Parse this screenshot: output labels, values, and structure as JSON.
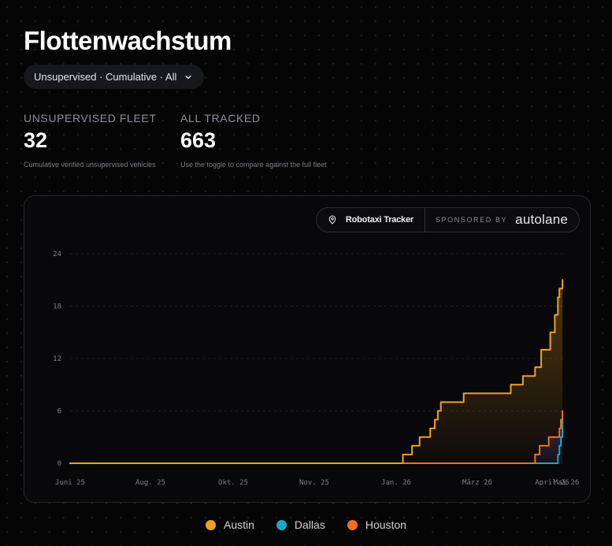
{
  "header": {
    "title": "Flottenwachstum",
    "filter_label": "Unsupervised · Cumulative · All"
  },
  "stats": [
    {
      "label": "UNSUPERVISED FLEET",
      "value": "32",
      "sub": "Cumulative verified unsupervised vehicles"
    },
    {
      "label": "ALL TRACKED",
      "value": "663",
      "sub": "Use the toggle to compare against the full fleet"
    }
  ],
  "badge": {
    "tracker": "Robotaxi Tracker",
    "sponsored": "SPONSORED BY",
    "brand": "autolane"
  },
  "colors": {
    "austin": "#f0a21a",
    "dallas": "#1aa9c4",
    "houston": "#f2701f",
    "houston_fill": "#3a2a5a"
  },
  "chart_data": {
    "type": "line",
    "step": true,
    "title": "",
    "xlabel": "",
    "ylabel": "",
    "ylim": [
      0,
      24
    ],
    "yticks": [
      "0",
      "6",
      "12",
      "18",
      "24"
    ],
    "xticks": [
      "Juni 25",
      "Aug. 25",
      "Okt. 25",
      "Nov. 25",
      "Jan. 26",
      "März 26",
      "April 26",
      "Mai 26"
    ],
    "grid": true,
    "legend_position": "bottom-center",
    "series": [
      {
        "name": "Austin",
        "color": "#f0a21a",
        "points": [
          [
            "2025-06-01",
            0
          ],
          [
            "2026-01-06",
            0
          ],
          [
            "2026-01-06",
            1
          ],
          [
            "2026-01-12",
            1
          ],
          [
            "2026-01-12",
            2
          ],
          [
            "2026-01-17",
            2
          ],
          [
            "2026-01-17",
            3
          ],
          [
            "2026-01-24",
            3
          ],
          [
            "2026-01-24",
            4
          ],
          [
            "2026-01-27",
            4
          ],
          [
            "2026-01-27",
            5
          ],
          [
            "2026-01-29",
            5
          ],
          [
            "2026-01-29",
            6
          ],
          [
            "2026-01-31",
            6
          ],
          [
            "2026-01-31",
            7
          ],
          [
            "2026-02-15",
            7
          ],
          [
            "2026-02-15",
            8
          ],
          [
            "2026-03-18",
            8
          ],
          [
            "2026-03-18",
            9
          ],
          [
            "2026-03-26",
            9
          ],
          [
            "2026-03-26",
            10
          ],
          [
            "2026-04-03",
            10
          ],
          [
            "2026-04-03",
            11
          ],
          [
            "2026-04-07",
            11
          ],
          [
            "2026-04-07",
            13
          ],
          [
            "2026-04-13",
            13
          ],
          [
            "2026-04-13",
            15
          ],
          [
            "2026-04-16",
            15
          ],
          [
            "2026-04-16",
            17
          ],
          [
            "2026-04-18",
            17
          ],
          [
            "2026-04-18",
            19
          ],
          [
            "2026-04-19",
            19
          ],
          [
            "2026-04-19",
            20
          ],
          [
            "2026-04-21",
            20
          ],
          [
            "2026-04-21",
            21
          ]
        ]
      },
      {
        "name": "Dallas",
        "color": "#1aa9c4",
        "points": [
          [
            "2025-06-01",
            0
          ],
          [
            "2026-04-18",
            0
          ],
          [
            "2026-04-18",
            1
          ],
          [
            "2026-04-19",
            1
          ],
          [
            "2026-04-19",
            2
          ],
          [
            "2026-04-20",
            2
          ],
          [
            "2026-04-20",
            3
          ],
          [
            "2026-04-21",
            3
          ],
          [
            "2026-04-21",
            5
          ]
        ]
      },
      {
        "name": "Houston",
        "color": "#f2701f",
        "points": [
          [
            "2025-06-01",
            0
          ],
          [
            "2026-04-03",
            0
          ],
          [
            "2026-04-03",
            1
          ],
          [
            "2026-04-06",
            1
          ],
          [
            "2026-04-06",
            2
          ],
          [
            "2026-04-12",
            2
          ],
          [
            "2026-04-12",
            3
          ],
          [
            "2026-04-15",
            3
          ],
          [
            "2026-04-19",
            3
          ],
          [
            "2026-04-19",
            4
          ],
          [
            "2026-04-20",
            4
          ],
          [
            "2026-04-20",
            5
          ],
          [
            "2026-04-21",
            5
          ],
          [
            "2026-04-21",
            6
          ]
        ]
      }
    ]
  }
}
